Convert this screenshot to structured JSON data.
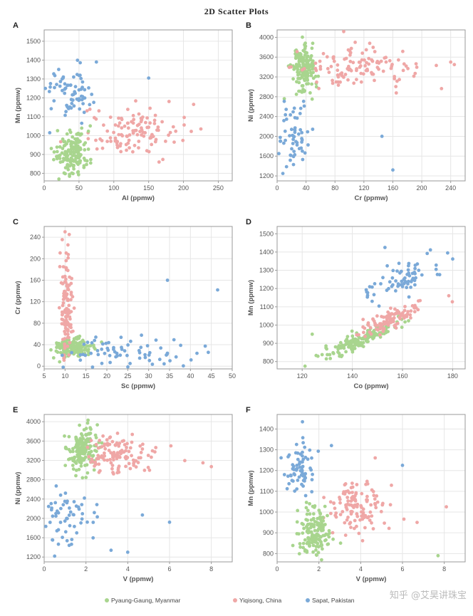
{
  "title": "2D Scatter Plots",
  "watermark": "知乎 @艾昊讲珠宝",
  "colors": {
    "myanmar": "#a8d58e",
    "china": "#efa7a6",
    "pakistan": "#7aa9d8"
  },
  "legend": [
    {
      "key": "myanmar",
      "label": "Pyaung-Gaung, Myanmar"
    },
    {
      "key": "china",
      "label": "Yiqisong, China"
    },
    {
      "key": "pakistan",
      "label": "Sapat, Pakistan"
    }
  ],
  "chart_data": [
    {
      "panel": "A",
      "type": "scatter",
      "xlabel": "Al (ppmw)",
      "ylabel": "Mn (ppmw)",
      "xlim": [
        0,
        270
      ],
      "ylim": [
        760,
        1560
      ],
      "xticks": [
        0,
        50,
        100,
        150,
        200,
        250
      ],
      "yticks": [
        800,
        900,
        1000,
        1100,
        1200,
        1300,
        1400,
        1500
      ],
      "clusters": [
        {
          "series": "pakistan",
          "cx": 38,
          "cy": 1240,
          "sx": 16,
          "sy": 70,
          "n": 70
        },
        {
          "series": "china",
          "cx": 120,
          "cy": 1020,
          "sx": 35,
          "sy": 60,
          "n": 120
        },
        {
          "series": "myanmar",
          "cx": 42,
          "cy": 910,
          "sx": 12,
          "sy": 60,
          "n": 150
        }
      ],
      "extra": [
        {
          "series": "pakistan",
          "x": 150,
          "y": 1305
        },
        {
          "series": "pakistan",
          "x": 8,
          "y": 1015
        },
        {
          "series": "pakistan",
          "x": 75,
          "y": 1390
        },
        {
          "series": "china",
          "x": 225,
          "y": 1035
        },
        {
          "series": "china",
          "x": 165,
          "y": 860
        }
      ]
    },
    {
      "panel": "B",
      "type": "scatter",
      "xlabel": "Cr (ppmw)",
      "ylabel": "Ni (ppmw)",
      "xlim": [
        0,
        260
      ],
      "ylim": [
        1100,
        4150
      ],
      "xticks": [
        0,
        40,
        80,
        120,
        160,
        200,
        240
      ],
      "yticks": [
        1200,
        1600,
        2000,
        2400,
        2800,
        3200,
        3600,
        4000
      ],
      "clusters": [
        {
          "series": "myanmar",
          "cx": 36,
          "cy": 3350,
          "sx": 8,
          "sy": 220,
          "n": 150
        },
        {
          "series": "china",
          "cx": 110,
          "cy": 3380,
          "sx": 40,
          "sy": 200,
          "n": 120
        },
        {
          "series": "pakistan",
          "cx": 22,
          "cy": 2050,
          "sx": 12,
          "sy": 300,
          "n": 60
        }
      ],
      "extra": [
        {
          "series": "china",
          "x": 245,
          "y": 3450
        },
        {
          "series": "china",
          "x": 240,
          "y": 3500
        },
        {
          "series": "pakistan",
          "x": 145,
          "y": 2000
        },
        {
          "series": "pakistan",
          "x": 160,
          "y": 1320
        },
        {
          "series": "pakistan",
          "x": 8,
          "y": 1250
        }
      ]
    },
    {
      "panel": "C",
      "type": "scatter",
      "xlabel": "Sc (ppmw)",
      "ylabel": "Cr (ppmw)",
      "xlim": [
        5,
        50
      ],
      "ylim": [
        -5,
        260
      ],
      "xticks": [
        5,
        10,
        15,
        20,
        25,
        30,
        35,
        40,
        45,
        50
      ],
      "yticks": [
        0,
        40,
        80,
        120,
        160,
        200,
        240
      ],
      "clusters": [
        {
          "series": "myanmar",
          "cx": 12,
          "cy": 36,
          "sx": 2.2,
          "sy": 8,
          "n": 160
        },
        {
          "series": "china",
          "cx": 10.3,
          "cy": 110,
          "sx": 0.6,
          "sy": 45,
          "n": 120
        },
        {
          "series": "pakistan",
          "cx": 25,
          "cy": 25,
          "sx": 8,
          "sy": 14,
          "n": 70
        }
      ],
      "extra": [
        {
          "series": "pakistan",
          "x": 34.5,
          "y": 160
        },
        {
          "series": "pakistan",
          "x": 46.5,
          "y": 142
        },
        {
          "series": "china",
          "x": 10,
          "y": 250
        },
        {
          "series": "china",
          "x": 11,
          "y": 245
        }
      ]
    },
    {
      "panel": "D",
      "type": "scatter",
      "xlabel": "Co (ppmw)",
      "ylabel": "Mn (ppmw)",
      "xlim": [
        110,
        185
      ],
      "ylim": [
        760,
        1540
      ],
      "xticks": [
        120,
        140,
        160,
        180
      ],
      "yticks": [
        800,
        900,
        1000,
        1100,
        1200,
        1300,
        1400,
        1500
      ],
      "clusters": [
        {
          "series": "myanmar",
          "cx": 143,
          "cy": 920,
          "sx": 8,
          "sy": 50,
          "n": 160,
          "corr": 0.9
        },
        {
          "series": "china",
          "cx": 155,
          "cy": 1030,
          "sx": 7,
          "sy": 45,
          "n": 110,
          "corr": 0.8
        },
        {
          "series": "pakistan",
          "cx": 160,
          "cy": 1250,
          "sx": 8,
          "sy": 60,
          "n": 70,
          "corr": 0.6
        }
      ],
      "extra": [
        {
          "series": "pakistan",
          "x": 178,
          "y": 1395
        },
        {
          "series": "pakistan",
          "x": 153,
          "y": 1425
        },
        {
          "series": "myanmar",
          "x": 124,
          "y": 950
        }
      ]
    },
    {
      "panel": "E",
      "type": "scatter",
      "xlabel": "V (ppmw)",
      "ylabel": "Ni (ppmw)",
      "xlim": [
        0,
        9
      ],
      "ylim": [
        1100,
        4150
      ],
      "xticks": [
        0,
        2,
        4,
        6,
        8
      ],
      "yticks": [
        1200,
        1600,
        2000,
        2400,
        2800,
        3200,
        3600,
        4000
      ],
      "clusters": [
        {
          "series": "myanmar",
          "cx": 1.8,
          "cy": 3400,
          "sx": 0.35,
          "sy": 250,
          "n": 150
        },
        {
          "series": "china",
          "cx": 3.6,
          "cy": 3300,
          "sx": 0.8,
          "sy": 200,
          "n": 120
        },
        {
          "series": "pakistan",
          "cx": 1.2,
          "cy": 2050,
          "sx": 0.6,
          "sy": 300,
          "n": 60
        }
      ],
      "extra": [
        {
          "series": "china",
          "x": 8.0,
          "y": 3070
        },
        {
          "series": "china",
          "x": 7.6,
          "y": 3150
        },
        {
          "series": "pakistan",
          "x": 4.7,
          "y": 2070
        },
        {
          "series": "pakistan",
          "x": 6.0,
          "y": 1920
        },
        {
          "series": "pakistan",
          "x": 4.0,
          "y": 1300
        },
        {
          "series": "pakistan",
          "x": 3.2,
          "y": 1340
        },
        {
          "series": "pakistan",
          "x": 0.5,
          "y": 1220
        }
      ]
    },
    {
      "panel": "F",
      "type": "scatter",
      "xlabel": "V (ppmw)",
      "ylabel": "Mn (ppmw)",
      "xlim": [
        0,
        9
      ],
      "ylim": [
        760,
        1470
      ],
      "xticks": [
        0,
        2,
        4,
        6,
        8
      ],
      "yticks": [
        800,
        900,
        1000,
        1100,
        1200,
        1300,
        1400
      ],
      "clusters": [
        {
          "series": "pakistan",
          "cx": 1.1,
          "cy": 1230,
          "sx": 0.4,
          "sy": 70,
          "n": 70
        },
        {
          "series": "china",
          "cx": 3.8,
          "cy": 1020,
          "sx": 0.7,
          "sy": 60,
          "n": 120
        },
        {
          "series": "myanmar",
          "cx": 1.8,
          "cy": 900,
          "sx": 0.4,
          "sy": 55,
          "n": 150
        }
      ],
      "extra": [
        {
          "series": "pakistan",
          "x": 6.0,
          "y": 1225
        },
        {
          "series": "pakistan",
          "x": 2.6,
          "y": 1320
        },
        {
          "series": "china",
          "x": 8.1,
          "y": 1025
        },
        {
          "series": "china",
          "x": 6.7,
          "y": 950
        },
        {
          "series": "myanmar",
          "x": 7.7,
          "y": 790
        }
      ]
    }
  ]
}
